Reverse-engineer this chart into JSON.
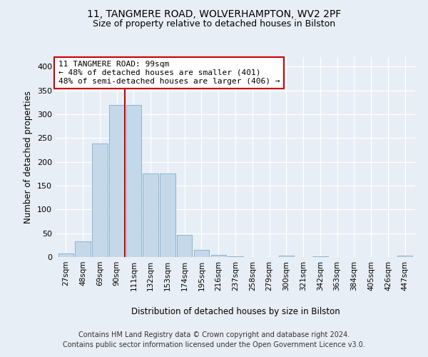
{
  "title1": "11, TANGMERE ROAD, WOLVERHAMPTON, WV2 2PF",
  "title2": "Size of property relative to detached houses in Bilston",
  "xlabel": "Distribution of detached houses by size in Bilston",
  "ylabel": "Number of detached properties",
  "categories": [
    "27sqm",
    "48sqm",
    "69sqm",
    "90sqm",
    "111sqm",
    "132sqm",
    "153sqm",
    "174sqm",
    "195sqm",
    "216sqm",
    "237sqm",
    "258sqm",
    "279sqm",
    "300sqm",
    "321sqm",
    "342sqm",
    "363sqm",
    "384sqm",
    "405sqm",
    "426sqm",
    "447sqm"
  ],
  "values": [
    7,
    33,
    238,
    320,
    320,
    176,
    176,
    46,
    15,
    5,
    1,
    0,
    0,
    3,
    0,
    1,
    0,
    0,
    0,
    0,
    3
  ],
  "bar_color": "#c5d8ea",
  "bar_edge_color": "#8ab4d0",
  "vline_x": 3.5,
  "vline_color": "#cc0000",
  "annotation_line1": "11 TANGMERE ROAD: 99sqm",
  "annotation_line2": "← 48% of detached houses are smaller (401)",
  "annotation_line3": "48% of semi-detached houses are larger (406) →",
  "annotation_box_fc": "#ffffff",
  "annotation_box_ec": "#cc0000",
  "ylim": [
    0,
    420
  ],
  "yticks": [
    0,
    50,
    100,
    150,
    200,
    250,
    300,
    350,
    400
  ],
  "bg_color": "#e8eef5",
  "grid_color": "#ffffff",
  "footer1": "Contains HM Land Registry data © Crown copyright and database right 2024.",
  "footer2": "Contains public sector information licensed under the Open Government Licence v3.0."
}
